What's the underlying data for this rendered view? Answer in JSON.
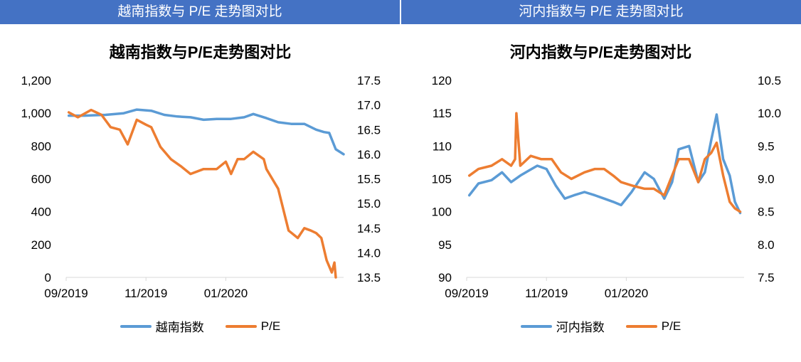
{
  "banners": {
    "left": "越南指数与 P/E 走势图对比",
    "right": "河内指数与 P/E 走势图对比"
  },
  "colors": {
    "index": "#5B9BD5",
    "pe": "#ED7D31",
    "banner": "#4472C4"
  },
  "chart_data": [
    {
      "type": "line",
      "title": "越南指数与P/E走势图对比",
      "x_ticks": [
        "09/2019",
        "11/2019",
        "01/2020"
      ],
      "x_range": [
        "2019-09-01",
        "2020-03-31"
      ],
      "y_left": {
        "range": [
          0,
          1200
        ],
        "ticks": [
          "0",
          "200",
          "400",
          "600",
          "800",
          "1,000",
          "1,200"
        ]
      },
      "y_right": {
        "range": [
          13.5,
          17.5
        ],
        "ticks": [
          "13.5",
          "14.0",
          "14.5",
          "15.0",
          "15.5",
          "16.0",
          "16.5",
          "17.0",
          "17.5"
        ]
      },
      "legend": "bottom",
      "series": [
        {
          "name": "越南指数",
          "axis": "left",
          "x": [
            "2019-09-03",
            "2019-09-15",
            "2019-10-01",
            "2019-10-15",
            "2019-10-25",
            "2019-11-05",
            "2019-11-15",
            "2019-11-25",
            "2019-12-05",
            "2019-12-15",
            "2019-12-25",
            "2020-01-05",
            "2020-01-15",
            "2020-01-22",
            "2020-02-01",
            "2020-02-10",
            "2020-02-20",
            "2020-03-01",
            "2020-03-10",
            "2020-03-16",
            "2020-03-20",
            "2020-03-25",
            "2020-03-31"
          ],
          "values": [
            985,
            985,
            990,
            1000,
            1022,
            1015,
            990,
            980,
            975,
            960,
            965,
            965,
            975,
            995,
            970,
            945,
            935,
            935,
            900,
            885,
            880,
            780,
            750
          ]
        },
        {
          "name": "P/E",
          "axis": "right",
          "x": [
            "2019-09-03",
            "2019-09-10",
            "2019-09-20",
            "2019-09-28",
            "2019-10-05",
            "2019-10-12",
            "2019-10-18",
            "2019-10-25",
            "2019-11-01",
            "2019-11-05",
            "2019-11-12",
            "2019-11-20",
            "2019-11-28",
            "2019-12-05",
            "2019-12-15",
            "2019-12-25",
            "2020-01-01",
            "2020-01-05",
            "2020-01-10",
            "2020-01-15",
            "2020-01-22",
            "2020-01-30",
            "2020-02-01",
            "2020-02-10",
            "2020-02-18",
            "2020-02-25",
            "2020-03-01",
            "2020-03-06",
            "2020-03-10",
            "2020-03-14",
            "2020-03-18",
            "2020-03-22",
            "2020-03-24",
            "2020-03-25"
          ],
          "values": [
            16.85,
            16.75,
            16.9,
            16.8,
            16.55,
            16.5,
            16.2,
            16.7,
            16.6,
            16.55,
            16.15,
            15.9,
            15.75,
            15.6,
            15.7,
            15.7,
            15.85,
            15.6,
            15.9,
            15.9,
            16.05,
            15.9,
            15.7,
            15.3,
            14.45,
            14.3,
            14.5,
            14.45,
            14.4,
            14.3,
            13.85,
            13.6,
            13.8,
            13.5
          ]
        }
      ]
    },
    {
      "type": "line",
      "title": "河内指数与P/E走势图对比",
      "x_ticks": [
        "09/2019",
        "11/2019",
        "01/2020"
      ],
      "x_range": [
        "2019-09-01",
        "2020-03-31"
      ],
      "y_left": {
        "range": [
          90,
          120
        ],
        "ticks": [
          "90",
          "95",
          "100",
          "105",
          "110",
          "115",
          "120"
        ]
      },
      "y_right": {
        "range": [
          7.5,
          10.5
        ],
        "ticks": [
          "7.5",
          "8.0",
          "8.5",
          "9.0",
          "9.5",
          "10.0",
          "10.5"
        ]
      },
      "legend": "bottom",
      "series": [
        {
          "name": "河内指数",
          "axis": "left",
          "x": [
            "2019-09-03",
            "2019-09-10",
            "2019-09-20",
            "2019-09-28",
            "2019-10-05",
            "2019-10-12",
            "2019-10-18",
            "2019-10-25",
            "2019-11-01",
            "2019-11-08",
            "2019-11-15",
            "2019-11-22",
            "2019-11-30",
            "2019-12-08",
            "2019-12-15",
            "2019-12-22",
            "2019-12-28",
            "2020-01-05",
            "2020-01-10",
            "2020-01-15",
            "2020-01-22",
            "2020-01-30",
            "2020-02-05",
            "2020-02-10",
            "2020-02-18",
            "2020-02-25",
            "2020-03-01",
            "2020-03-06",
            "2020-03-10",
            "2020-03-15",
            "2020-03-20",
            "2020-03-24",
            "2020-03-28"
          ],
          "values": [
            102.5,
            104.3,
            104.8,
            106.0,
            104.5,
            105.5,
            106.2,
            107.0,
            106.5,
            104.0,
            102.0,
            102.5,
            103.0,
            102.5,
            102.0,
            101.5,
            101.0,
            103.0,
            104.5,
            106.0,
            105.0,
            102.0,
            104.5,
            109.5,
            110.0,
            104.5,
            106.0,
            111.0,
            114.8,
            108.0,
            105.5,
            101.5,
            99.8
          ]
        },
        {
          "name": "P/E",
          "axis": "right",
          "x": [
            "2019-09-03",
            "2019-09-10",
            "2019-09-20",
            "2019-09-28",
            "2019-10-05",
            "2019-10-08",
            "2019-10-09",
            "2019-10-12",
            "2019-10-20",
            "2019-10-28",
            "2019-11-05",
            "2019-11-12",
            "2019-11-20",
            "2019-11-30",
            "2019-12-08",
            "2019-12-15",
            "2019-12-22",
            "2019-12-28",
            "2020-01-05",
            "2020-01-15",
            "2020-01-22",
            "2020-01-30",
            "2020-02-05",
            "2020-02-10",
            "2020-02-18",
            "2020-02-25",
            "2020-03-01",
            "2020-03-06",
            "2020-03-10",
            "2020-03-15",
            "2020-03-20",
            "2020-03-24",
            "2020-03-28"
          ],
          "values": [
            9.05,
            9.15,
            9.2,
            9.3,
            9.2,
            9.3,
            10.0,
            9.2,
            9.35,
            9.3,
            9.3,
            9.1,
            9.0,
            9.1,
            9.15,
            9.15,
            9.05,
            8.95,
            8.9,
            8.85,
            8.85,
            8.75,
            9.05,
            9.3,
            9.3,
            8.95,
            9.3,
            9.4,
            9.55,
            9.05,
            8.65,
            8.55,
            8.5
          ]
        }
      ]
    }
  ],
  "legends": [
    {
      "index_label": "越南指数",
      "pe_label": "P/E"
    },
    {
      "index_label": "河内指数",
      "pe_label": "P/E"
    }
  ]
}
